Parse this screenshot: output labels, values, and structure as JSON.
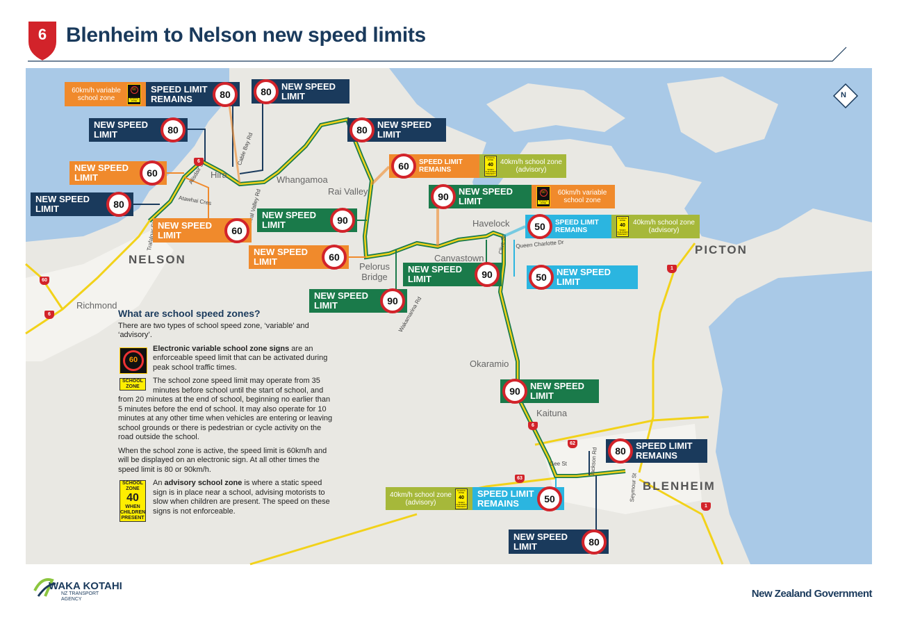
{
  "header": {
    "route": "6",
    "title": "Blenheim to Nelson new speed limits"
  },
  "compass": "N",
  "places": [
    "NELSON",
    "Richmond",
    "Hira",
    "Whangamoa",
    "Rai Valley",
    "Pelorus Bridge",
    "Havelock",
    "Canvastown",
    "Okaramio",
    "Kaituna",
    "PICTON",
    "BLENHEIM"
  ],
  "streets": [
    "Alisdair St",
    "Atawhai Cres",
    "Trafalgar St",
    "Cable Bay Rd",
    "Teal Valley Rd",
    "Clive St",
    "Queen Charlotte Dr",
    "Wakamarina Rd",
    "Gee St",
    "Jackson Rd",
    "Seymour St"
  ],
  "shields": [
    "6",
    "60",
    "6",
    "1",
    "62",
    "63",
    "6",
    "1"
  ],
  "sign_icons": {
    "variable": {
      "speed": "60",
      "label": "SCHOOL ZONE"
    },
    "advisory": {
      "top": "SCHOOL ZONE",
      "speed": "40",
      "bottom": "WHEN CHILDREN PRESENT"
    }
  },
  "callouts": [
    {
      "label": "SPEED LIMIT REMAINS",
      "speed": "80",
      "note": "60km/h variable school zone"
    },
    {
      "label": "NEW SPEED LIMIT",
      "speed": "80"
    },
    {
      "label": "NEW SPEED LIMIT",
      "speed": "80"
    },
    {
      "label": "NEW SPEED LIMIT",
      "speed": "80"
    },
    {
      "label": "NEW SPEED LIMIT",
      "speed": "60"
    },
    {
      "label": "SPEED LIMIT REMAINS",
      "speed": "60",
      "note": "40km/h school zone (advisory)"
    },
    {
      "label": "NEW SPEED LIMIT",
      "speed": "80"
    },
    {
      "label": "NEW SPEED LIMIT",
      "speed": "60"
    },
    {
      "label": "NEW SPEED LIMIT",
      "speed": "90"
    },
    {
      "label": "NEW SPEED LIMIT",
      "speed": "90",
      "note": "60km/h variable school zone"
    },
    {
      "label": "SPEED LIMIT REMAINS",
      "speed": "50",
      "note": "40km/h school zone (advisory)"
    },
    {
      "label": "NEW SPEED LIMIT",
      "speed": "60"
    },
    {
      "label": "NEW SPEED LIMIT",
      "speed": "90"
    },
    {
      "label": "NEW SPEED LIMIT",
      "speed": "50"
    },
    {
      "label": "NEW SPEED LIMIT",
      "speed": "90"
    },
    {
      "label": "NEW SPEED LIMIT",
      "speed": "90"
    },
    {
      "label": "SPEED LIMIT REMAINS",
      "speed": "80"
    },
    {
      "label": "SPEED LIMIT REMAINS",
      "speed": "50",
      "note": "40km/h school zone (advisory)"
    },
    {
      "label": "NEW SPEED LIMIT",
      "speed": "80"
    }
  ],
  "info": {
    "heading": "What are school speed zones?",
    "intro": "There are two types of school speed zone, ‘variable’ and ‘advisory’.",
    "variable_bold": "Electronic variable school zone signs",
    "variable_text": " are an enforceable speed limit that can be activated during peak school traffic times.",
    "timing": "The school zone speed limit may operate from 35 minutes before school until the start of school, and from 20 minutes at the end of school, beginning no earlier than 5 minutes before the end of school. It may also operate for 10 minutes at any other time when vehicles are entering or leaving school grounds or there is pedestrian or cycle activity on the road outside the school.",
    "active": "When the school zone is active, the speed limit is 60km/h and will be displayed on an electronic sign. At all other times the speed limit is 80 or 90km/h.",
    "advisory_lead": "An ",
    "advisory_bold": "advisory school zone",
    "advisory_text": " is where a static speed sign is in place near a school, advising motorists to slow when children are present. The speed on these signs is not enforceable."
  },
  "footer": {
    "agency": "WAKA KOTAHI",
    "agency_sub": "NZ TRANSPORT AGENCY",
    "government": "New Zealand Government"
  }
}
